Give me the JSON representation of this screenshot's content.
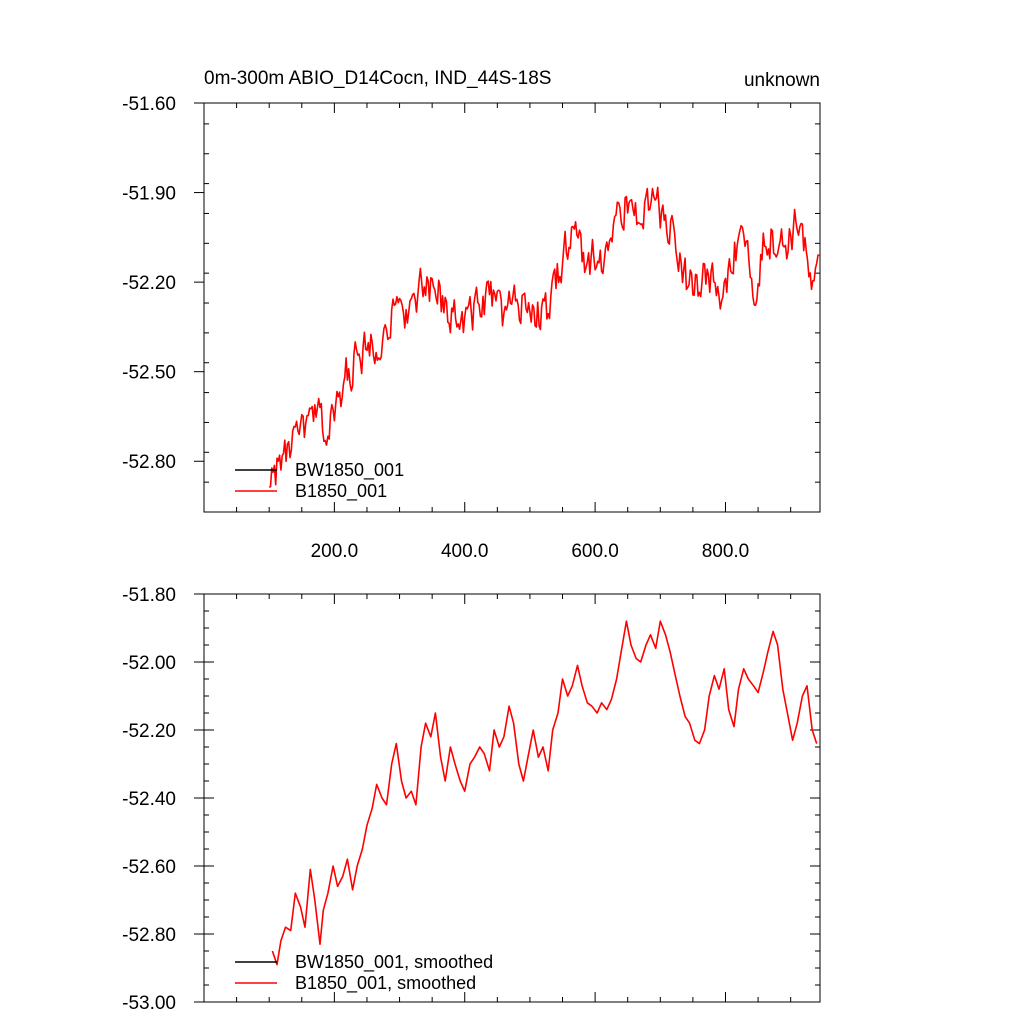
{
  "chart_data": [
    {
      "type": "line",
      "title": "0m-300m ABIO_D14Cocn, IND_44S-18S",
      "right_title": "unknown",
      "xlim": [
        0,
        945
      ],
      "ylim": [
        -52.97,
        -51.6
      ],
      "x_ticks": [
        200,
        400,
        600,
        800
      ],
      "x_tick_labels": [
        "200.0",
        "400.0",
        "600.0",
        "800.0"
      ],
      "y_ticks": [
        -51.6,
        -51.9,
        -52.2,
        -52.5,
        -52.8
      ],
      "y_tick_labels": [
        "-51.60",
        "-51.90",
        "-52.20",
        "-52.50",
        "-52.80"
      ],
      "x_minor_step": 50,
      "y_minor_step": 0.1,
      "legend_position": "bottom-left",
      "series": [
        {
          "name": "BW1850_001",
          "color": "#000000",
          "trend_x": [],
          "trend_y": []
        },
        {
          "name": "B1850_001",
          "color": "#ff0000",
          "trend_x": [
            100,
            115,
            130,
            145,
            160,
            175,
            190,
            205,
            220,
            240,
            260,
            280,
            300,
            320,
            335,
            350,
            365,
            380,
            400,
            420,
            440,
            460,
            480,
            500,
            520,
            540,
            555,
            570,
            585,
            600,
            615,
            630,
            645,
            660,
            675,
            690,
            700,
            710,
            725,
            740,
            755,
            770,
            785,
            800,
            815,
            830,
            845,
            860,
            875,
            890,
            905,
            915,
            925,
            935,
            945
          ],
          "trend_y": [
            -52.85,
            -52.82,
            -52.76,
            -52.72,
            -52.68,
            -52.65,
            -52.7,
            -52.62,
            -52.5,
            -52.45,
            -52.4,
            -52.35,
            -52.3,
            -52.28,
            -52.22,
            -52.24,
            -52.25,
            -52.3,
            -52.33,
            -52.28,
            -52.26,
            -52.3,
            -52.28,
            -52.27,
            -52.33,
            -52.2,
            -52.08,
            -52.05,
            -52.12,
            -52.12,
            -52.12,
            -51.99,
            -51.95,
            -51.98,
            -51.96,
            -51.92,
            -51.97,
            -52.0,
            -52.08,
            -52.18,
            -52.2,
            -52.17,
            -52.23,
            -52.25,
            -52.1,
            -52.09,
            -52.2,
            -52.06,
            -52.05,
            -52.08,
            -52.02,
            -51.98,
            -52.15,
            -52.25,
            -52.14
          ],
          "noise_amplitude": 0.06,
          "noise_step": 2
        }
      ]
    },
    {
      "type": "line",
      "title": "",
      "xlim": [
        0,
        945
      ],
      "ylim": [
        -53.0,
        -51.8
      ],
      "x_ticks": [
        200,
        400,
        600,
        800
      ],
      "x_tick_labels": [],
      "y_ticks": [
        -51.8,
        -52.0,
        -52.2,
        -52.4,
        -52.6,
        -52.8,
        -53.0
      ],
      "y_tick_labels": [
        "-51.80",
        "-52.00",
        "-52.20",
        "-52.40",
        "-52.60",
        "-52.80",
        "-53.00"
      ],
      "x_minor_step": 50,
      "y_minor_step": 0.05,
      "legend_position": "bottom-left",
      "series": [
        {
          "name": "BW1850_001, smoothed",
          "color": "#000000",
          "x": [],
          "y": []
        },
        {
          "name": "B1850_001, smoothed",
          "color": "#ff0000",
          "x": [
            105,
            112,
            118,
            125,
            133,
            140,
            148,
            155,
            163,
            170,
            178,
            183,
            190,
            198,
            205,
            213,
            220,
            228,
            235,
            243,
            250,
            258,
            265,
            273,
            280,
            288,
            295,
            303,
            310,
            318,
            325,
            333,
            340,
            348,
            355,
            363,
            370,
            378,
            385,
            393,
            400,
            408,
            415,
            423,
            430,
            438,
            445,
            453,
            460,
            468,
            475,
            483,
            490,
            498,
            505,
            513,
            520,
            528,
            535,
            543,
            550,
            558,
            565,
            573,
            580,
            588,
            595,
            603,
            610,
            618,
            625,
            633,
            640,
            648,
            655,
            663,
            670,
            678,
            685,
            693,
            700,
            708,
            715,
            723,
            730,
            738,
            745,
            753,
            760,
            768,
            775,
            783,
            790,
            798,
            805,
            813,
            820,
            828,
            835,
            843,
            850,
            858,
            865,
            873,
            880,
            888,
            895,
            903,
            910,
            918,
            925,
            933,
            940
          ],
          "y": [
            -52.85,
            -52.89,
            -52.82,
            -52.78,
            -52.79,
            -52.68,
            -52.72,
            -52.78,
            -52.61,
            -52.7,
            -52.83,
            -52.73,
            -52.68,
            -52.6,
            -52.66,
            -52.63,
            -52.58,
            -52.67,
            -52.6,
            -52.55,
            -52.48,
            -52.43,
            -52.36,
            -52.4,
            -52.42,
            -52.3,
            -52.24,
            -52.35,
            -52.4,
            -52.38,
            -52.42,
            -52.25,
            -52.18,
            -52.22,
            -52.15,
            -52.28,
            -52.35,
            -52.25,
            -52.3,
            -52.35,
            -52.38,
            -52.3,
            -52.28,
            -52.25,
            -52.27,
            -52.32,
            -52.2,
            -52.25,
            -52.22,
            -52.13,
            -52.18,
            -52.3,
            -52.35,
            -52.27,
            -52.2,
            -52.28,
            -52.25,
            -52.32,
            -52.2,
            -52.15,
            -52.05,
            -52.1,
            -52.07,
            -52.01,
            -52.07,
            -52.12,
            -52.13,
            -52.15,
            -52.12,
            -52.14,
            -52.11,
            -52.05,
            -51.97,
            -51.88,
            -51.95,
            -51.99,
            -52.0,
            -51.95,
            -51.92,
            -51.96,
            -51.88,
            -51.92,
            -51.97,
            -52.04,
            -52.1,
            -52.16,
            -52.18,
            -52.23,
            -52.24,
            -52.2,
            -52.1,
            -52.04,
            -52.08,
            -52.02,
            -52.14,
            -52.19,
            -52.08,
            -52.02,
            -52.05,
            -52.07,
            -52.09,
            -52.03,
            -51.97,
            -51.91,
            -51.95,
            -52.08,
            -52.15,
            -52.23,
            -52.18,
            -52.1,
            -52.07,
            -52.2,
            -52.24
          ]
        }
      ]
    }
  ]
}
